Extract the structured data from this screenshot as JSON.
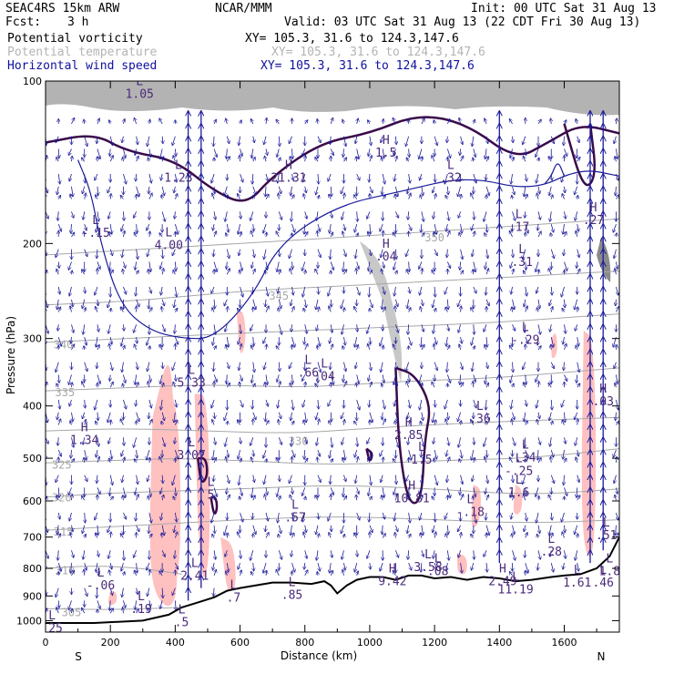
{
  "header": {
    "model": "SEAC4RS 15km ARW",
    "org": "NCAR/MMM",
    "init": "Init: 00 UTC Sat 31 Aug 13",
    "fcst_label": "Fcst:",
    "fcst_value": "3 h",
    "valid": "Valid: 03 UTC Sat 31 Aug 13 (22 CDT Fri 30 Aug 13)"
  },
  "fields": [
    {
      "name": "Potential vorticity",
      "xy": "XY= 105.3, 31.6 to 124.3,147.6",
      "color": "#000000"
    },
    {
      "name": "Potential temperature",
      "xy": "XY= 105.3, 31.6 to 124.3,147.6",
      "color": "#b4b4b4"
    },
    {
      "name": "Horizontal wind speed",
      "xy": "XY= 105.3, 31.6 to 124.3,147.6",
      "color": "#1010a0"
    }
  ],
  "colors": {
    "theta": "#a8a8a8",
    "pv": "#3a0a4a",
    "wind": "#1a1a9a",
    "shade_pink": "#ffc0c0",
    "terrain": "#000000"
  },
  "chart_data": {
    "type": "contour",
    "xlabel": "Distance (km)",
    "ylabel": "Pressure (hPa)",
    "xlim": [
      0,
      1770
    ],
    "ylim": [
      1050,
      100
    ],
    "y_scale": "log",
    "x_ticks": [
      0,
      200,
      400,
      600,
      800,
      1000,
      1200,
      1400,
      1600
    ],
    "y_ticks": [
      100,
      200,
      300,
      400,
      500,
      600,
      700,
      800,
      900,
      1000
    ],
    "end_labels": {
      "left": "S",
      "right": "N"
    },
    "terrain_pressure": [
      [
        0,
        1010
      ],
      [
        150,
        1010
      ],
      [
        300,
        1000
      ],
      [
        380,
        975
      ],
      [
        420,
        945
      ],
      [
        470,
        925
      ],
      [
        520,
        905
      ],
      [
        560,
        880
      ],
      [
        600,
        870
      ],
      [
        650,
        860
      ],
      [
        700,
        850
      ],
      [
        760,
        850
      ],
      [
        820,
        855
      ],
      [
        860,
        845
      ],
      [
        880,
        860
      ],
      [
        900,
        890
      ],
      [
        930,
        860
      ],
      [
        960,
        840
      ],
      [
        1000,
        830
      ],
      [
        1040,
        830
      ],
      [
        1080,
        840
      ],
      [
        1120,
        825
      ],
      [
        1160,
        825
      ],
      [
        1200,
        835
      ],
      [
        1250,
        830
      ],
      [
        1300,
        840
      ],
      [
        1350,
        830
      ],
      [
        1400,
        835
      ],
      [
        1450,
        845
      ],
      [
        1500,
        840
      ],
      [
        1560,
        830
      ],
      [
        1600,
        825
      ],
      [
        1650,
        820
      ],
      [
        1700,
        800
      ],
      [
        1740,
        760
      ],
      [
        1770,
        700
      ]
    ],
    "theta_contours": [
      {
        "label": "305",
        "points": [
          [
            0,
            950
          ],
          [
            200,
            955
          ],
          [
            420,
            945
          ]
        ],
        "label_at": [
          80,
          965
        ]
      },
      {
        "label": "310",
        "points": [
          [
            0,
            800
          ],
          [
            150,
            790
          ],
          [
            300,
            800
          ],
          [
            420,
            820
          ]
        ],
        "label_at": [
          60,
          808
        ]
      },
      {
        "label": "315",
        "points": [
          [
            0,
            680
          ],
          [
            200,
            670
          ],
          [
            400,
            660
          ],
          [
            600,
            650
          ],
          [
            900,
            640
          ],
          [
            1200,
            650
          ],
          [
            1500,
            660
          ],
          [
            1770,
            650
          ]
        ],
        "label_at": [
          55,
          685
        ]
      },
      {
        "label": "320",
        "points": [
          [
            0,
            590
          ],
          [
            200,
            580
          ],
          [
            400,
            575
          ],
          [
            600,
            570
          ],
          [
            900,
            560
          ],
          [
            1200,
            570
          ],
          [
            1500,
            585
          ],
          [
            1770,
            570
          ]
        ],
        "label_at": [
          50,
          592
        ]
      },
      {
        "label": "325",
        "points": [
          [
            0,
            510
          ],
          [
            200,
            505
          ],
          [
            400,
            500
          ],
          [
            600,
            505
          ],
          [
            900,
            515
          ],
          [
            1200,
            505
          ],
          [
            1500,
            500
          ],
          [
            1770,
            480
          ]
        ],
        "label_at": [
          50,
          515
        ]
      },
      {
        "label": "330",
        "points": [
          [
            0,
            445
          ],
          [
            250,
            440
          ],
          [
            500,
            445
          ],
          [
            760,
            450
          ],
          [
            1000,
            440
          ],
          [
            1300,
            430
          ],
          [
            1770,
            420
          ]
        ],
        "label_at": [
          780,
          465
        ]
      },
      {
        "label": "335",
        "points": [
          [
            0,
            375
          ],
          [
            250,
            370
          ],
          [
            500,
            365
          ],
          [
            800,
            370
          ],
          [
            1100,
            360
          ],
          [
            1400,
            355
          ],
          [
            1770,
            340
          ]
        ],
        "label_at": [
          60,
          378
        ]
      },
      {
        "label": "340",
        "points": [
          [
            0,
            305
          ],
          [
            250,
            300
          ],
          [
            500,
            295
          ],
          [
            800,
            290
          ],
          [
            1100,
            285
          ],
          [
            1400,
            280
          ],
          [
            1770,
            270
          ]
        ],
        "label_at": [
          55,
          308
        ]
      },
      {
        "label": "345",
        "points": [
          [
            0,
            260
          ],
          [
            300,
            255
          ],
          [
            600,
            245
          ],
          [
            900,
            240
          ],
          [
            1200,
            235
          ],
          [
            1770,
            225
          ]
        ],
        "label_at": [
          720,
          250
        ]
      },
      {
        "label": "350",
        "points": [
          [
            0,
            210
          ],
          [
            300,
            205
          ],
          [
            600,
            200
          ],
          [
            900,
            195
          ],
          [
            1200,
            190
          ],
          [
            1770,
            180
          ]
        ],
        "label_at": [
          1200,
          195
        ]
      }
    ],
    "hl_markers": [
      {
        "type": "L",
        "value": "-.15",
        "x": 155,
        "p": 190
      },
      {
        "type": "L",
        "value": "1.05",
        "x": 290,
        "p": 105
      },
      {
        "type": "L",
        "value": "4.00",
        "x": 380,
        "p": 200
      },
      {
        "type": "L",
        "value": "1.23",
        "x": 410,
        "p": 150
      },
      {
        "type": "H",
        "value": "21.31",
        "x": 750,
        "p": 150
      },
      {
        "type": "H",
        "value": ".04",
        "x": 1050,
        "p": 210
      },
      {
        "type": "H",
        "value": "1.5",
        "x": 1050,
        "p": 135
      },
      {
        "type": "L",
        "value": ".32",
        "x": 1250,
        "p": 150
      },
      {
        "type": "L",
        "value": ".17",
        "x": 1460,
        "p": 185
      },
      {
        "type": "L",
        "value": ".31",
        "x": 1470,
        "p": 215
      },
      {
        "type": "L",
        "value": "-.29",
        "x": 1480,
        "p": 300
      },
      {
        "type": "H",
        "value": ".27",
        "x": 1690,
        "p": 180
      },
      {
        "type": "L",
        "value": ".66",
        "x": 810,
        "p": 345
      },
      {
        "type": "L",
        "value": ".04",
        "x": 860,
        "p": 350
      },
      {
        "type": "L",
        "value": "5.33",
        "x": 450,
        "p": 360
      },
      {
        "type": "H",
        "value": "1.34",
        "x": 120,
        "p": 460
      },
      {
        "type": "H",
        "value": "2.85",
        "x": 1120,
        "p": 450
      },
      {
        "type": "L",
        "value": ".36",
        "x": 1340,
        "p": 420
      },
      {
        "type": "H",
        "value": ".03",
        "x": 1720,
        "p": 390
      },
      {
        "type": "L",
        "value": "3.07",
        "x": 450,
        "p": 490
      },
      {
        "type": "L",
        "value": "1.5",
        "x": 1160,
        "p": 500
      },
      {
        "type": "L",
        "value": ".34",
        "x": 1480,
        "p": 495
      },
      {
        "type": "L",
        "value": "-.25",
        "x": 1460,
        "p": 525
      },
      {
        "type": "L",
        "value": "1.6",
        "x": 1460,
        "p": 575
      },
      {
        "type": "L",
        "value": "5",
        "x": 510,
        "p": 580
      },
      {
        "type": "H",
        "value": "10.81",
        "x": 1130,
        "p": 590
      },
      {
        "type": "L",
        "value": ".57",
        "x": 770,
        "p": 640
      },
      {
        "type": "L",
        "value": "-.18",
        "x": 1310,
        "p": 625
      },
      {
        "type": "L",
        "value": ".28",
        "x": 1560,
        "p": 740
      },
      {
        "type": "L",
        "value": ".51",
        "x": 1730,
        "p": 690
      },
      {
        "type": "L",
        "value": "2.41",
        "x": 460,
        "p": 820
      },
      {
        "type": "L",
        "value": "3.58",
        "x": 1180,
        "p": 790
      },
      {
        "type": "L",
        "value": ".08",
        "x": 1210,
        "p": 805
      },
      {
        "type": "L",
        "value": "-.06",
        "x": 170,
        "p": 855
      },
      {
        "type": "H",
        "value": "9.42",
        "x": 1070,
        "p": 840
      },
      {
        "type": "H",
        "value": "2.49",
        "x": 1410,
        "p": 840
      },
      {
        "type": "L",
        "value": "11.19",
        "x": 1450,
        "p": 870
      },
      {
        "type": "L",
        "value": "1.61",
        "x": 1640,
        "p": 845
      },
      {
        "type": "L",
        "value": ".46",
        "x": 1720,
        "p": 845
      },
      {
        "type": "L",
        "value": "1.8",
        "x": 1740,
        "p": 805
      },
      {
        "type": "L",
        "value": ".19",
        "x": 295,
        "p": 945
      },
      {
        "type": "L",
        "value": ".25",
        "x": 20,
        "p": 1025
      },
      {
        "type": "L",
        "value": ".5",
        "x": 420,
        "p": 1000
      },
      {
        "type": "L",
        "value": ".85",
        "x": 760,
        "p": 890
      },
      {
        "type": "L",
        "value": ".7",
        "x": 580,
        "p": 900
      }
    ],
    "wind_columns_km": [
      0,
      40,
      80,
      120,
      160,
      200,
      240,
      280,
      320,
      360,
      400,
      440,
      480,
      520,
      560,
      600,
      640,
      680,
      720,
      760,
      800,
      840,
      880,
      920,
      960,
      1000,
      1040,
      1080,
      1120,
      1160,
      1200,
      1240,
      1280,
      1320,
      1360,
      1400,
      1440,
      1480,
      1520,
      1560,
      1600,
      1640,
      1680,
      1720,
      1760
    ]
  }
}
